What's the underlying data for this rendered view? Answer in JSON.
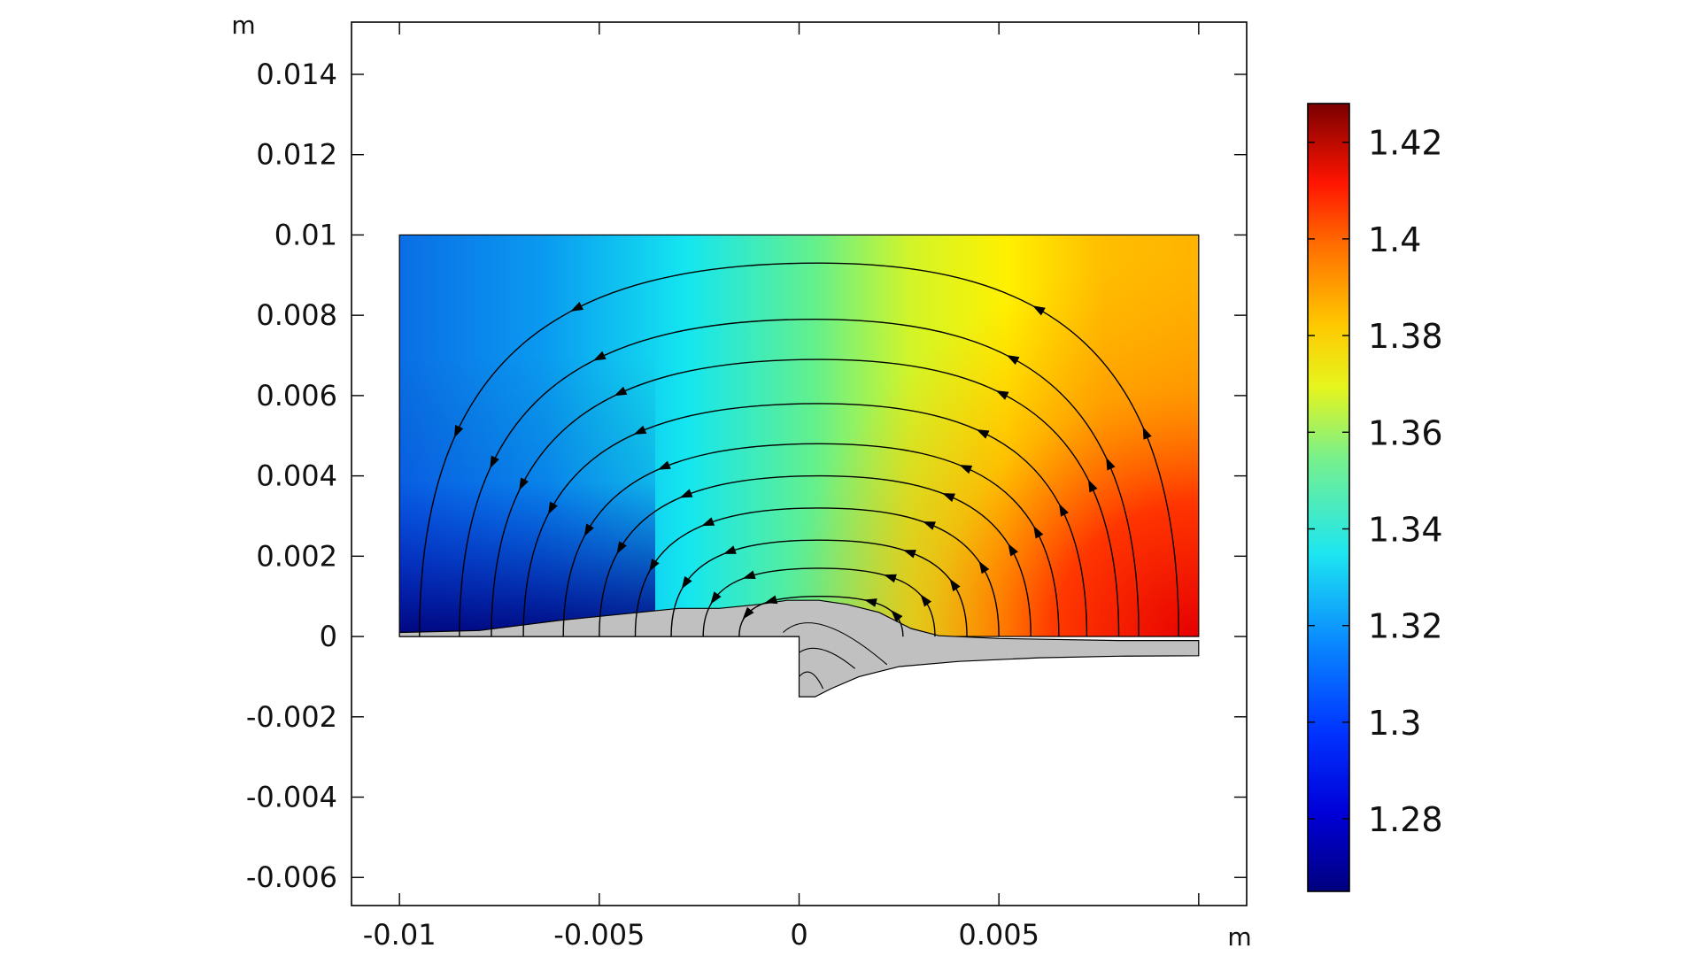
{
  "chart_data": {
    "type": "heatmap",
    "title": "",
    "x_unit": "m",
    "y_unit": "m",
    "xlim": [
      -0.0112,
      0.0112
    ],
    "ylim": [
      -0.0067,
      0.0153
    ],
    "x_ticks": [
      {
        "value": -0.01,
        "label": "-0.01"
      },
      {
        "value": -0.005,
        "label": "-0.005"
      },
      {
        "value": 0,
        "label": "0"
      },
      {
        "value": 0.005,
        "label": "0.005"
      }
    ],
    "x_minor_ticks": [
      0.01
    ],
    "y_ticks": [
      {
        "value": 0.014,
        "label": "0.014"
      },
      {
        "value": 0.012,
        "label": "0.012"
      },
      {
        "value": 0.01,
        "label": "0.01"
      },
      {
        "value": 0.008,
        "label": "0.008"
      },
      {
        "value": 0.006,
        "label": "0.006"
      },
      {
        "value": 0.004,
        "label": "0.004"
      },
      {
        "value": 0.002,
        "label": "0.002"
      },
      {
        "value": 0,
        "label": "0"
      },
      {
        "value": -0.002,
        "label": "-0.002"
      },
      {
        "value": -0.004,
        "label": "-0.004"
      },
      {
        "value": -0.006,
        "label": "-0.006"
      }
    ],
    "domain": {
      "x_range": [
        -0.01,
        0.01
      ],
      "y_range": [
        0,
        0.01
      ],
      "left_value": 1.3,
      "right_value": 1.4,
      "bottom_left_value": 1.28
    },
    "solid_region": {
      "color": "#c0c0c0",
      "outline": [
        [
          -0.01,
          0
        ],
        [
          -0.01,
          0.0001
        ],
        [
          -0.008,
          0.00015
        ],
        [
          -0.006,
          0.0004
        ],
        [
          -0.004,
          0.0006
        ],
        [
          -0.003,
          0.0007
        ],
        [
          -0.002,
          0.0007
        ],
        [
          -0.001,
          0.0008
        ],
        [
          -0.0003,
          0.0009
        ],
        [
          0.0005,
          0.0009
        ],
        [
          0.0012,
          0.0008
        ],
        [
          0.002,
          0.0006
        ],
        [
          0.0028,
          0.0002
        ],
        [
          0.0035,
          2e-05
        ],
        [
          0.005,
          -5e-05
        ],
        [
          0.008,
          -0.0001
        ],
        [
          0.01,
          -0.0001
        ],
        [
          0.01,
          -0.00048
        ],
        [
          0.008,
          -0.00049
        ],
        [
          0.006,
          -0.00053
        ],
        [
          0.004,
          -0.00062
        ],
        [
          0.0025,
          -0.00075
        ],
        [
          0.0015,
          -0.001
        ],
        [
          0.0008,
          -0.0013
        ],
        [
          0.0004,
          -0.0015
        ],
        [
          0,
          -0.0015
        ],
        [
          0,
          0
        ]
      ]
    },
    "streamlines": [
      {
        "start": [
          -0.0095,
          0
        ],
        "apex": [
          0.0005,
          0.0093
        ],
        "end": [
          0.0095,
          0
        ]
      },
      {
        "start": [
          -0.0085,
          0
        ],
        "apex": [
          0.0004,
          0.0079
        ],
        "end": [
          0.0085,
          0
        ]
      },
      {
        "start": [
          -0.0077,
          0
        ],
        "apex": [
          0.0005,
          0.0069
        ],
        "end": [
          0.008,
          0
        ]
      },
      {
        "start": [
          -0.0069,
          0
        ],
        "apex": [
          0.0005,
          0.0058
        ],
        "end": [
          0.0072,
          0
        ]
      },
      {
        "start": [
          -0.0059,
          0
        ],
        "apex": [
          0.0005,
          0.0048
        ],
        "end": [
          0.0065,
          0
        ]
      },
      {
        "start": [
          -0.005,
          0
        ],
        "apex": [
          0.0005,
          0.004
        ],
        "end": [
          0.0058,
          0
        ]
      },
      {
        "start": [
          -0.0041,
          0
        ],
        "apex": [
          0.0005,
          0.0032
        ],
        "end": [
          0.005,
          0
        ]
      },
      {
        "start": [
          -0.0032,
          0
        ],
        "apex": [
          0.0005,
          0.0024
        ],
        "end": [
          0.0042,
          0
        ]
      },
      {
        "start": [
          -0.0024,
          0
        ],
        "apex": [
          0.0005,
          0.0017
        ],
        "end": [
          0.0034,
          0
        ]
      },
      {
        "start": [
          -0.0015,
          0
        ],
        "apex": [
          0.0005,
          0.001
        ],
        "end": [
          0.0026,
          0
        ]
      }
    ],
    "inner_arcs": [
      {
        "start": [
          -0.0004,
          0.0001
        ],
        "apex": [
          0.0004,
          0.0004
        ],
        "end": [
          0.0022,
          -0.0007
        ]
      },
      {
        "start": [
          0,
          -0.0004
        ],
        "apex": [
          0.0005,
          -0.0005
        ],
        "end": [
          0.0014,
          -0.0008
        ]
      },
      {
        "start": [
          0,
          -0.001
        ],
        "apex": [
          0.0003,
          -0.0011
        ],
        "end": [
          0.0006,
          -0.0013
        ]
      }
    ],
    "colorbar": {
      "range": [
        1.265,
        1.428
      ],
      "ticks": [
        {
          "value": 1.42,
          "label": "1.42"
        },
        {
          "value": 1.4,
          "label": "1.4"
        },
        {
          "value": 1.38,
          "label": "1.38"
        },
        {
          "value": 1.36,
          "label": "1.36"
        },
        {
          "value": 1.34,
          "label": "1.34"
        },
        {
          "value": 1.32,
          "label": "1.32"
        },
        {
          "value": 1.3,
          "label": "1.3"
        },
        {
          "value": 1.28,
          "label": "1.28"
        }
      ],
      "colormap": "rainbow (dark blue to dark red)"
    },
    "grid": false,
    "legend": "colorbar right"
  },
  "colors": {
    "background": "#ffffff",
    "axis": "#000000",
    "streamline": "#000000",
    "solid": "#c0c0c0"
  }
}
